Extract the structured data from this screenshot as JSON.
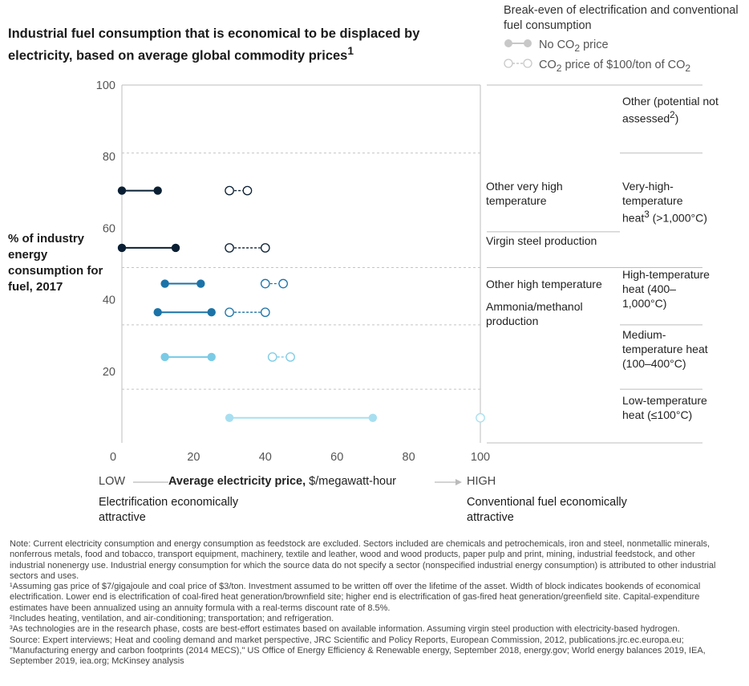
{
  "title": "Industrial fuel consumption that is economical to be displaced by electricity, based on average global commodity prices",
  "title_sup": "1",
  "legend": {
    "title": "Break-even of electrification and conventional fuel consumption",
    "no_price": "No CO",
    "no_price_sub": "2",
    "no_price_tail": " price",
    "co2_price": "CO",
    "co2_price_sub": "2",
    "co2_price_mid": " price of $100/ton of CO",
    "co2_price_sub2": "2"
  },
  "y_axis_label": "% of industry energy consumption for fuel, 2017",
  "x_axis": {
    "low": "LOW",
    "title_bold": "Average electricity price,",
    "title_unit": " $/megawatt-hour",
    "high": "HIGH",
    "left_note": "Electrification economically attractive",
    "right_note": "Conventional fuel economically attractive"
  },
  "sectors": {
    "other_very_high": "Other very high temperature",
    "virgin_steel": "Virgin steel production",
    "other_high": "Other high temperature",
    "ammonia": "Ammonia/methanol production"
  },
  "heat_categories": {
    "other": "Other (potential not assessed",
    "other_sup": "2",
    "other_tail": ")",
    "very_high": "Very-high-temperature heat",
    "very_high_sup": "3",
    "very_high_tail": " (>1,000°C)",
    "high": "High-temperature heat (400–1,000°C)",
    "medium": "Medium-temperature heat (100–400°C)",
    "low": "Low-temperature heat (≤100°C)"
  },
  "chart_data": {
    "type": "scatter",
    "title": "Industrial fuel consumption that is economical to be displaced by electricity, based on average global commodity prices",
    "xlabel": "Average electricity price, $/megawatt-hour",
    "ylabel": "% of industry energy consumption for fuel, 2017",
    "xlim": [
      0,
      100
    ],
    "ylim": [
      0,
      100
    ],
    "x_ticks": [
      0,
      20,
      40,
      60,
      80,
      100
    ],
    "y_ticks": [
      20,
      40,
      60,
      80,
      100
    ],
    "category_boundaries_y": [
      15,
      33,
      49,
      81
    ],
    "series": [
      {
        "name": "No CO2 price",
        "ranges": [
          {
            "sector": "Other very high temperature",
            "y": 70.5,
            "x_low": 0,
            "x_high": 10,
            "color": "#0a1f33"
          },
          {
            "sector": "Virgin steel production",
            "y": 54.5,
            "x_low": 0,
            "x_high": 15,
            "color": "#0a1f33"
          },
          {
            "sector": "Other high temperature",
            "y": 44.5,
            "x_low": 12,
            "x_high": 22,
            "color": "#1b73a8"
          },
          {
            "sector": "Ammonia/methanol production",
            "y": 36.5,
            "x_low": 10,
            "x_high": 25,
            "color": "#1b73a8"
          },
          {
            "sector": "Medium-temperature heat",
            "y": 24,
            "x_low": 12,
            "x_high": 25,
            "color": "#7bcbe6"
          },
          {
            "sector": "Low-temperature heat",
            "y": 7,
            "x_low": 30,
            "x_high": 70,
            "color": "#a7dff0"
          }
        ]
      },
      {
        "name": "CO2 price of $100/ton of CO2",
        "ranges": [
          {
            "sector": "Other very high temperature",
            "y": 70.5,
            "x_low": 30,
            "x_high": 35,
            "color": "#0a1f33"
          },
          {
            "sector": "Virgin steel production",
            "y": 54.5,
            "x_low": 30,
            "x_high": 40,
            "color": "#0a1f33"
          },
          {
            "sector": "Other high temperature",
            "y": 44.5,
            "x_low": 40,
            "x_high": 45,
            "color": "#1b73a8"
          },
          {
            "sector": "Ammonia/methanol production",
            "y": 36.5,
            "x_low": 30,
            "x_high": 40,
            "color": "#1b73a8"
          },
          {
            "sector": "Medium-temperature heat",
            "y": 24,
            "x_low": 42,
            "x_high": 47,
            "color": "#7bcbe6"
          },
          {
            "sector": "Low-temperature heat",
            "y": 7,
            "x_low": 100,
            "x_high": 100,
            "color": "#a7dff0"
          }
        ]
      }
    ]
  },
  "notes": [
    "Note: Current electricity consumption and energy consumption as feedstock are excluded. Sectors included are chemicals and petrochemicals, iron and steel, nonmetallic minerals, nonferrous metals, food and tobacco, transport equipment, machinery, textile and leather, wood and wood products, paper pulp and print, mining, industrial feedstock, and other industrial nonenergy use. Industrial energy consumption for which the source data do not specify a sector (nonspecified industrial energy consumption) is attributed to other industrial sectors and uses.",
    "¹Assuming gas price of $7/gigajoule and coal price of $3/ton. Investment assumed to be written off over the lifetime of the asset. Width of block indicates bookends of economical electrification. Lower end is electrification of coal-fired heat generation/brownfield site; higher end is electrification of gas-fired heat generation/greenfield site. Capital-expenditure estimates have been annualized using an annuity formula with a real-terms discount rate of 8.5%.",
    "²Includes heating, ventilation, and air-conditioning; transportation; and refrigeration.",
    "³As technologies are in the research phase, costs are best-effort estimates based on available information. Assuming virgin steel production with electricity-based hydrogen.",
    "Source: Expert interviews; Heat and cooling demand and market perspective, JRC Scientific and Policy Reports, European Commission, 2012, publications.jrc.ec.europa.eu; \"Manufacturing energy and carbon footprints (2014 MECS),\" US Office of Energy Efficiency & Renewable energy, September 2018, energy.gov; World energy balances 2019, IEA, September 2019, iea.org; McKinsey analysis"
  ]
}
